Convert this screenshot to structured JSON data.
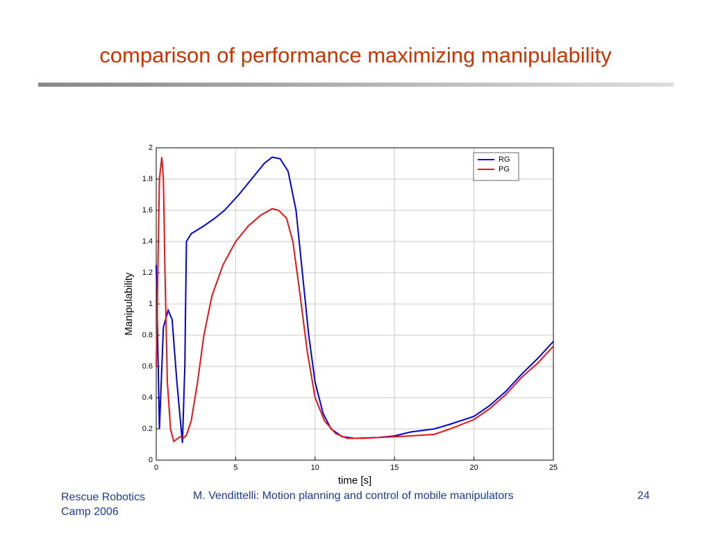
{
  "slide": {
    "title": "comparison of performance maximizing manipulability",
    "footer_left": "Rescue Robotics Camp 2006",
    "footer_center": "M. Vendittelli: Motion planning and control of mobile manipulators",
    "page_number": "24"
  },
  "chart_data": {
    "type": "line",
    "x_label": "time [s]",
    "y_label": "Manipulability",
    "xlim": [
      0,
      25
    ],
    "ylim": [
      0,
      2
    ],
    "xticks": [
      0,
      5,
      10,
      15,
      20,
      25
    ],
    "yticks": [
      0,
      0.2,
      0.4,
      0.6,
      0.8,
      1,
      1.2,
      1.4,
      1.6,
      1.8,
      2
    ],
    "grid": true,
    "legend": "upper right",
    "series": [
      {
        "name": "RG",
        "color": "#0000dd",
        "x": [
          0,
          0.2,
          0.45,
          0.75,
          1,
          1.3,
          1.65,
          1.8,
          1.9,
          2.2,
          3,
          3.7,
          4.3,
          5.2,
          6,
          6.8,
          7.3,
          7.8,
          8.3,
          8.8,
          9.2,
          9.6,
          10,
          10.5,
          11,
          11.7,
          12.5,
          14,
          15,
          16,
          17.5,
          18.5,
          20,
          21,
          22,
          23,
          24,
          25
        ],
        "values": [
          1.25,
          0.2,
          0.85,
          0.96,
          0.9,
          0.5,
          0.11,
          0.6,
          1.4,
          1.45,
          1.5,
          1.55,
          1.6,
          1.7,
          1.8,
          1.9,
          1.94,
          1.93,
          1.85,
          1.6,
          1.2,
          0.8,
          0.5,
          0.3,
          0.2,
          0.15,
          0.14,
          0.145,
          0.155,
          0.18,
          0.2,
          0.23,
          0.28,
          0.35,
          0.44,
          0.55,
          0.65,
          0.76
        ]
      },
      {
        "name": "PG",
        "color": "#ee1111",
        "x": [
          0,
          0.2,
          0.35,
          0.45,
          0.55,
          0.7,
          0.9,
          1.1,
          1.5,
          1.7,
          1.9,
          2.2,
          2.6,
          3,
          3.5,
          4.2,
          5,
          5.8,
          6.6,
          7.3,
          7.7,
          8.2,
          8.6,
          9,
          9.5,
          10,
          10.6,
          11.3,
          12,
          13,
          15,
          16,
          17.5,
          18.5,
          20,
          21,
          22,
          23,
          24,
          25
        ],
        "values": [
          0.6,
          1.8,
          1.94,
          1.8,
          1.2,
          0.5,
          0.2,
          0.12,
          0.15,
          0.14,
          0.16,
          0.25,
          0.5,
          0.8,
          1.05,
          1.25,
          1.4,
          1.5,
          1.57,
          1.61,
          1.6,
          1.55,
          1.4,
          1.1,
          0.7,
          0.4,
          0.25,
          0.17,
          0.14,
          0.14,
          0.15,
          0.155,
          0.165,
          0.2,
          0.26,
          0.33,
          0.42,
          0.53,
          0.62,
          0.73
        ]
      }
    ]
  }
}
